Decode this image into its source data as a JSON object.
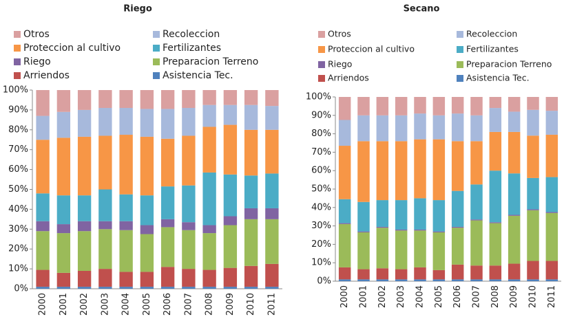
{
  "chart_data": [
    {
      "type": "bar",
      "stacked": true,
      "title": "Riego",
      "categories": [
        "2000",
        "2001",
        "2002",
        "2003",
        "2004",
        "2005",
        "2006",
        "2007",
        "2008",
        "2009",
        "2010",
        "2011"
      ],
      "ylim": [
        0,
        100
      ],
      "yticks": [
        {
          "value": 0,
          "label": "0%"
        },
        {
          "value": 10,
          "label": "10%"
        },
        {
          "value": 20,
          "label": "20%"
        },
        {
          "value": 30,
          "label": "30%"
        },
        {
          "value": 40,
          "label": "40%"
        },
        {
          "value": 50,
          "label": "50%"
        },
        {
          "value": 60,
          "label": "60%"
        },
        {
          "value": 70,
          "label": "70%"
        },
        {
          "value": 80,
          "label": "80%"
        },
        {
          "value": 90,
          "label": "90%"
        },
        {
          "value": 100,
          "label": "100%"
        }
      ],
      "series": [
        {
          "name": "Asistencia Tec.",
          "color": "#4f81bd",
          "values": [
            1,
            1,
            1,
            1,
            1,
            1,
            1,
            1,
            1,
            1,
            1,
            1
          ]
        },
        {
          "name": "Arriendos",
          "color": "#c0504d",
          "values": [
            8.5,
            7,
            8,
            9,
            7.5,
            7.5,
            10,
            9,
            8.5,
            9.5,
            10.5,
            11.5
          ]
        },
        {
          "name": "Preparacion Terreno",
          "color": "#9bbb59",
          "values": [
            19.5,
            20,
            20,
            20,
            21,
            19,
            20,
            19.5,
            18.5,
            21.5,
            23.5,
            22.5
          ]
        },
        {
          "name": "Riego",
          "color": "#8064a2",
          "values": [
            5,
            4.5,
            5,
            4,
            4.5,
            4.5,
            4,
            4,
            4,
            4.5,
            5.5,
            5.5
          ]
        },
        {
          "name": "Fertilizantes",
          "color": "#4bacc6",
          "values": [
            14,
            14.5,
            13,
            16,
            13.5,
            15,
            16.5,
            18.5,
            26.5,
            21,
            16.5,
            17.5
          ]
        },
        {
          "name": "Proteccion al cultivo",
          "color": "#f79646",
          "values": [
            27,
            29,
            29.5,
            27,
            30,
            29.5,
            24,
            25,
            23,
            25,
            23,
            22
          ]
        },
        {
          "name": "Recoleccion",
          "color": "#a7b9dc",
          "values": [
            12,
            13,
            13.5,
            14,
            13.5,
            14,
            15,
            14,
            11,
            10,
            12.5,
            12
          ]
        },
        {
          "name": "Otros",
          "color": "#daa0a0",
          "values": [
            13,
            11,
            10,
            9,
            9,
            9.5,
            9.5,
            9,
            7.5,
            7.5,
            7.5,
            8
          ]
        }
      ]
    },
    {
      "type": "bar",
      "stacked": true,
      "title": "Secano",
      "categories": [
        "2000",
        "2001",
        "2002",
        "2003",
        "2004",
        "2005",
        "2006",
        "2007",
        "2008",
        "2009",
        "2010",
        "2011"
      ],
      "ylim": [
        0,
        100
      ],
      "yticks": [
        {
          "value": 0,
          "label": "0%"
        },
        {
          "value": 10,
          "label": "10%"
        },
        {
          "value": 20,
          "label": "20%"
        },
        {
          "value": 30,
          "label": "30%"
        },
        {
          "value": 40,
          "label": "40%"
        },
        {
          "value": 50,
          "label": "50%"
        },
        {
          "value": 60,
          "label": "60%"
        },
        {
          "value": 70,
          "label": "70%"
        },
        {
          "value": 80,
          "label": "80%"
        },
        {
          "value": 90,
          "label": "90%"
        },
        {
          "value": 100,
          "label": "100%"
        }
      ],
      "series": [
        {
          "name": "Asistencia Tec.",
          "color": "#4f81bd",
          "values": [
            1,
            1,
            1,
            1,
            1,
            1,
            1,
            1,
            1,
            1,
            1,
            1
          ]
        },
        {
          "name": "Arriendos",
          "color": "#c0504d",
          "values": [
            6.5,
            5.5,
            6,
            5.5,
            6.5,
            5,
            8,
            7.5,
            7.5,
            8.5,
            10,
            10
          ]
        },
        {
          "name": "Preparacion Terreno",
          "color": "#9bbb59",
          "values": [
            23.5,
            20,
            22,
            21,
            20,
            20.5,
            20,
            24.5,
            23,
            26,
            27.5,
            26
          ]
        },
        {
          "name": "Riego",
          "color": "#8064a2",
          "values": [
            0.5,
            0.5,
            0.5,
            0.5,
            0.5,
            0.5,
            0.5,
            0.5,
            0.5,
            0.5,
            0.5,
            0.5
          ]
        },
        {
          "name": "Fertilizantes",
          "color": "#4bacc6",
          "values": [
            13,
            16,
            14.5,
            16,
            17,
            17,
            19.5,
            19,
            28,
            22.5,
            17,
            19
          ]
        },
        {
          "name": "Proteccion al cultivo",
          "color": "#f79646",
          "values": [
            29,
            33,
            32,
            32,
            32,
            33,
            27,
            23.5,
            21,
            22.5,
            23,
            23
          ]
        },
        {
          "name": "Recoleccion",
          "color": "#a7b9dc",
          "values": [
            14,
            14,
            14,
            14,
            14,
            13,
            15,
            14,
            13,
            11,
            14,
            13
          ]
        },
        {
          "name": "Otros",
          "color": "#daa0a0",
          "values": [
            12.5,
            10,
            10,
            10,
            9,
            10,
            9,
            10,
            6,
            8,
            7,
            7.5
          ]
        }
      ]
    }
  ]
}
